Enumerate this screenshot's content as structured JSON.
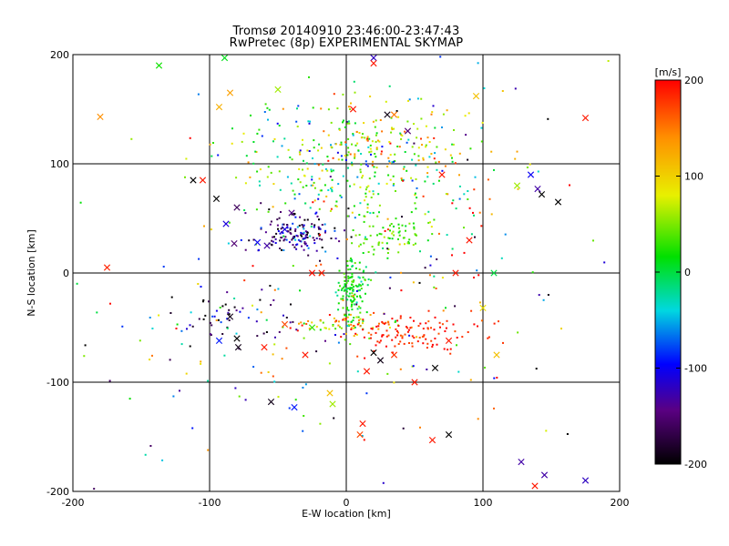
{
  "chart_data": {
    "type": "scatter",
    "title": "Tromsø 20140910 23:46:00-23:47:43",
    "subtitle": "RwPretec (8p) EXPERIMENTAL SKYMAP",
    "xlabel": "E-W location [km]",
    "ylabel": "N-S location [km]",
    "xlim": [
      -200,
      200
    ],
    "ylim": [
      -200,
      200
    ],
    "x_ticks": [
      -200,
      -100,
      0,
      100,
      200
    ],
    "y_ticks": [
      -200,
      -100,
      0,
      100,
      200
    ],
    "grid": true,
    "colorbar": {
      "label": "[m/s]",
      "range": [
        -200,
        200
      ],
      "ticks": [
        -200,
        -100,
        0,
        100,
        200
      ],
      "colormap": "rainbow (black-purple-blue-cyan-green-yellow-orange-red)"
    },
    "marker_types": [
      "dot",
      "x"
    ],
    "clusters": [
      {
        "center": [
          -35,
          35
        ],
        "spread": [
          15,
          9
        ],
        "count": 150,
        "velocity": -150,
        "velocity_spread": 55
      },
      {
        "center": [
          -5,
          100
        ],
        "spread": [
          45,
          28
        ],
        "count": 280,
        "velocity": 30,
        "velocity_spread": 60
      },
      {
        "center": [
          30,
          120
        ],
        "spread": [
          30,
          20
        ],
        "count": 80,
        "velocity": 90,
        "velocity_spread": 50
      },
      {
        "center": [
          5,
          -15
        ],
        "spread": [
          6,
          16
        ],
        "count": 140,
        "velocity": 15,
        "velocity_spread": 20
      },
      {
        "center": [
          35,
          35
        ],
        "spread": [
          12,
          10
        ],
        "count": 70,
        "velocity": 35,
        "velocity_spread": 15
      },
      {
        "center": [
          0,
          -47
        ],
        "spread": [
          18,
          5
        ],
        "count": 70,
        "velocity": 120,
        "velocity_spread": 55
      },
      {
        "center": [
          45,
          -55
        ],
        "spread": [
          28,
          8
        ],
        "count": 110,
        "velocity": 185,
        "velocity_spread": 15
      },
      {
        "center": [
          -85,
          -40
        ],
        "spread": [
          25,
          12
        ],
        "count": 45,
        "velocity": -170,
        "velocity_spread": 35
      },
      {
        "center": [
          -40,
          -65
        ],
        "spread": [
          60,
          30
        ],
        "count": 60,
        "velocity": 0,
        "velocity_spread": 130
      },
      {
        "center": [
          60,
          60
        ],
        "spread": [
          40,
          40
        ],
        "count": 70,
        "velocity": 100,
        "velocity_spread": 90
      },
      {
        "center": [
          0,
          0
        ],
        "spread": [
          110,
          110
        ],
        "count": 180,
        "velocity": 0,
        "velocity_spread": 150
      }
    ],
    "x_markers": [
      {
        "x": -175,
        "y": 5,
        "v": 185
      },
      {
        "x": -112,
        "y": 85,
        "v": -200
      },
      {
        "x": -105,
        "y": 85,
        "v": 190
      },
      {
        "x": -95,
        "y": 68,
        "v": -200
      },
      {
        "x": -88,
        "y": 45,
        "v": -110
      },
      {
        "x": -80,
        "y": 60,
        "v": -160
      },
      {
        "x": -82,
        "y": 27,
        "v": -150
      },
      {
        "x": -45,
        "y": 40,
        "v": -110
      },
      {
        "x": -65,
        "y": 28,
        "v": -100
      },
      {
        "x": -58,
        "y": 25,
        "v": -130
      },
      {
        "x": -40,
        "y": 55,
        "v": -140
      },
      {
        "x": -180,
        "y": 143,
        "v": 140
      },
      {
        "x": -137,
        "y": 190,
        "v": 20
      },
      {
        "x": -89,
        "y": 197,
        "v": 10
      },
      {
        "x": -93,
        "y": 152,
        "v": 120
      },
      {
        "x": -85,
        "y": 165,
        "v": 130
      },
      {
        "x": -50,
        "y": 168,
        "v": 60
      },
      {
        "x": -85,
        "y": -40,
        "v": -190
      },
      {
        "x": -80,
        "y": -60,
        "v": -200
      },
      {
        "x": -79,
        "y": -68,
        "v": -190
      },
      {
        "x": -93,
        "y": -62,
        "v": -90
      },
      {
        "x": -60,
        "y": -68,
        "v": 190
      },
      {
        "x": -45,
        "y": -47,
        "v": 170
      },
      {
        "x": -25,
        "y": -50,
        "v": 30
      },
      {
        "x": -30,
        "y": -75,
        "v": 190
      },
      {
        "x": -55,
        "y": -118,
        "v": -190
      },
      {
        "x": -38,
        "y": -123,
        "v": -90
      },
      {
        "x": -12,
        "y": -110,
        "v": 110
      },
      {
        "x": -10,
        "y": -120,
        "v": 60
      },
      {
        "x": -25,
        "y": 0,
        "v": 195
      },
      {
        "x": -18,
        "y": 0,
        "v": 190
      },
      {
        "x": 12,
        "y": -138,
        "v": 190
      },
      {
        "x": 10,
        "y": -148,
        "v": 170
      },
      {
        "x": 20,
        "y": 197,
        "v": -120
      },
      {
        "x": 20,
        "y": 192,
        "v": 190
      },
      {
        "x": 5,
        "y": 150,
        "v": 190
      },
      {
        "x": 30,
        "y": 145,
        "v": -190
      },
      {
        "x": 35,
        "y": 145,
        "v": 150
      },
      {
        "x": 45,
        "y": 130,
        "v": -150
      },
      {
        "x": 70,
        "y": 90,
        "v": 190
      },
      {
        "x": 95,
        "y": 162,
        "v": 110
      },
      {
        "x": 90,
        "y": 30,
        "v": 190
      },
      {
        "x": 80,
        "y": 0,
        "v": 190
      },
      {
        "x": 108,
        "y": 0,
        "v": 0
      },
      {
        "x": 100,
        "y": -32,
        "v": 90
      },
      {
        "x": 110,
        "y": -75,
        "v": 110
      },
      {
        "x": 75,
        "y": -62,
        "v": 190
      },
      {
        "x": 65,
        "y": -87,
        "v": -200
      },
      {
        "x": 50,
        "y": -100,
        "v": 190
      },
      {
        "x": 15,
        "y": -90,
        "v": 190
      },
      {
        "x": 25,
        "y": -80,
        "v": -190
      },
      {
        "x": 20,
        "y": -73,
        "v": -200
      },
      {
        "x": 35,
        "y": -75,
        "v": 180
      },
      {
        "x": 63,
        "y": -153,
        "v": 190
      },
      {
        "x": 75,
        "y": -148,
        "v": -200
      },
      {
        "x": 128,
        "y": -173,
        "v": -130
      },
      {
        "x": 145,
        "y": -185,
        "v": -130
      },
      {
        "x": 175,
        "y": -190,
        "v": -120
      },
      {
        "x": 138,
        "y": -195,
        "v": 190
      },
      {
        "x": 125,
        "y": 80,
        "v": 60
      },
      {
        "x": 135,
        "y": 90,
        "v": -100
      },
      {
        "x": 140,
        "y": 77,
        "v": -130
      },
      {
        "x": 143,
        "y": 72,
        "v": -200
      },
      {
        "x": 155,
        "y": 65,
        "v": -200
      },
      {
        "x": 175,
        "y": 142,
        "v": 190
      }
    ]
  }
}
